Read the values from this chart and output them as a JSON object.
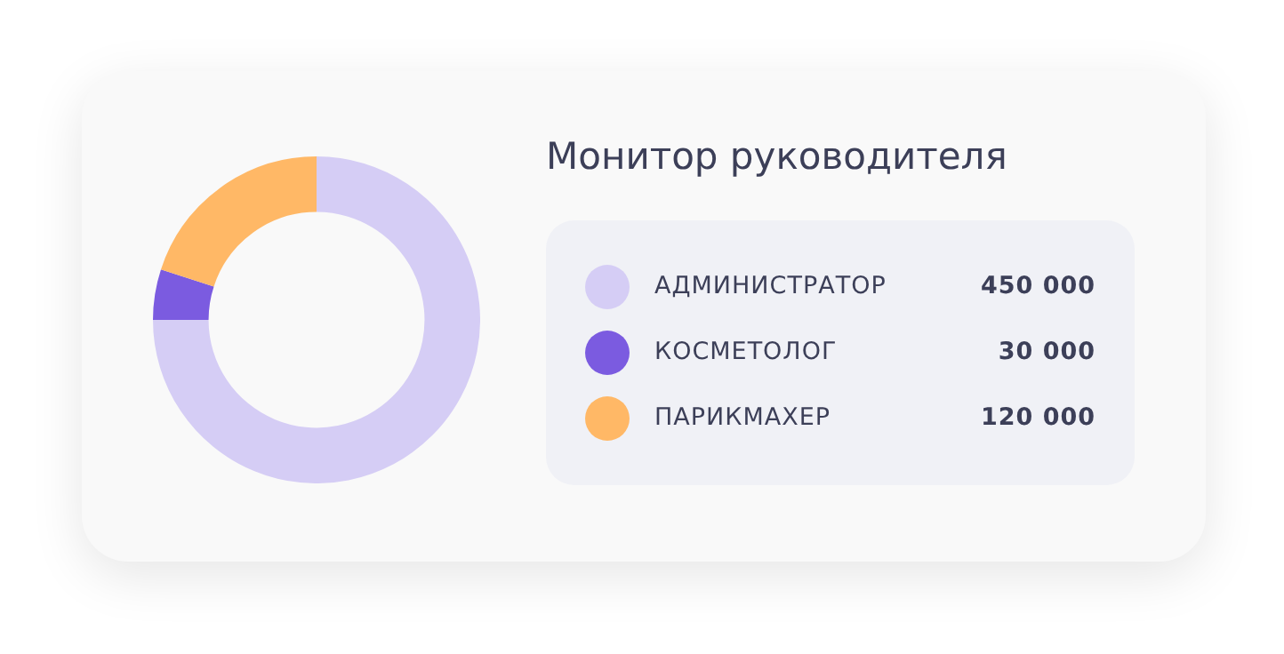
{
  "chart_data": {
    "type": "donut",
    "title": "Монитор руководителя",
    "categories": [
      "АДМИНИСТРАТОР",
      "КОСМЕТОЛОГ",
      "ПАРИКМАХЕР"
    ],
    "values": [
      450000,
      30000,
      120000
    ],
    "colors": [
      "#d5cdf5",
      "#7b5be0",
      "#ffb866"
    ],
    "legend": "right",
    "data_labels": true
  }
}
